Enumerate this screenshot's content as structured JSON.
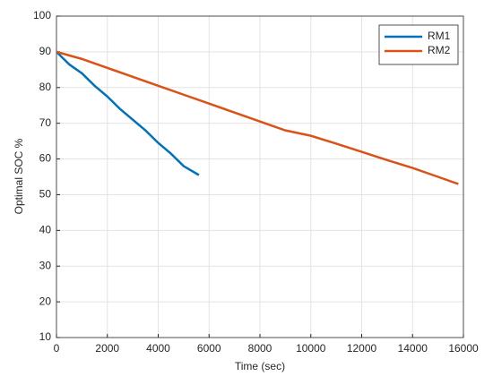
{
  "chart_data": {
    "type": "line",
    "xlabel": "Time (sec)",
    "ylabel": "Optimal SOC %",
    "xlim": [
      0,
      16000
    ],
    "xticks": [
      0,
      2000,
      4000,
      6000,
      8000,
      10000,
      12000,
      14000,
      16000
    ],
    "ylim": [
      10,
      100
    ],
    "yticks": [
      10,
      20,
      30,
      40,
      50,
      60,
      70,
      80,
      90,
      100
    ],
    "grid": true,
    "legend": "northeast",
    "series": [
      {
        "name": "RM1",
        "color": "#0072bd",
        "x": [
          0,
          500,
          1000,
          1500,
          2000,
          2500,
          3000,
          3500,
          4000,
          4500,
          5000,
          5600
        ],
        "values": [
          90,
          86.5,
          84,
          80.5,
          77.5,
          74,
          71,
          68,
          64.5,
          61.5,
          58,
          55.5
        ]
      },
      {
        "name": "RM2",
        "color": "#d95319",
        "x": [
          0,
          1000,
          2000,
          3000,
          4000,
          5000,
          6000,
          7000,
          8000,
          9000,
          10000,
          11000,
          12000,
          13000,
          14000,
          15000,
          15800
        ],
        "values": [
          90,
          88,
          85.5,
          83,
          80.5,
          78,
          75.5,
          73,
          70.5,
          68,
          66.5,
          64.3,
          62,
          59.7,
          57.5,
          55,
          53
        ]
      }
    ]
  }
}
